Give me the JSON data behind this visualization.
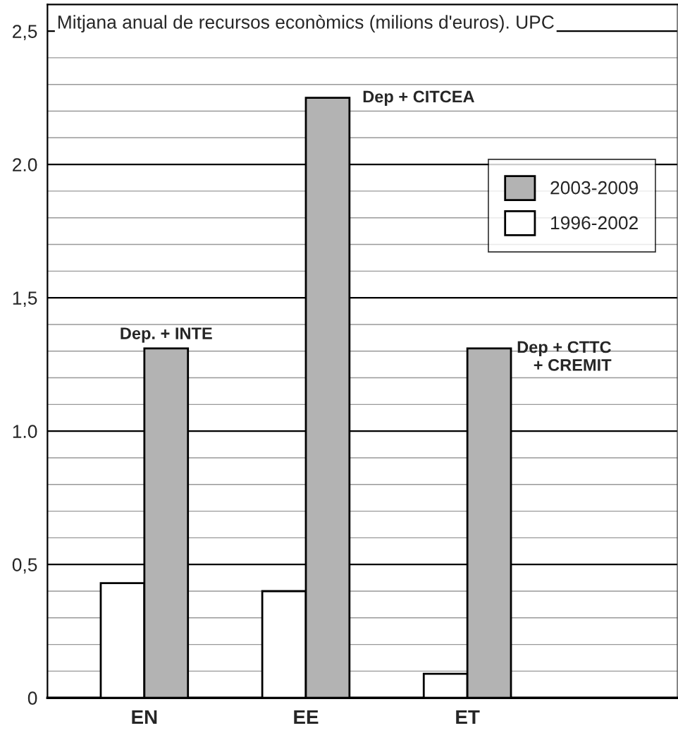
{
  "chart_data": {
    "type": "bar",
    "title": "Mitjana anual de recursos econòmics (milions d'euros). UPC",
    "categories": [
      "EN",
      "EE",
      "ET"
    ],
    "series": [
      {
        "name": "1996-2002",
        "color": "#ffffff",
        "values": [
          0.43,
          0.4,
          0.09
        ]
      },
      {
        "name": "2003-2009",
        "color": "#b3b3b3",
        "values": [
          1.31,
          2.25,
          1.31
        ]
      }
    ],
    "ylim": [
      0,
      2.6
    ],
    "yticks": [
      0,
      {
        "value": 0.1,
        "label": null
      },
      {
        "value": 0.2,
        "label": null
      },
      {
        "value": 0.3,
        "label": null
      },
      {
        "value": 0.4,
        "label": null
      },
      {
        "value": 0.5,
        "label": "0,5"
      },
      {
        "value": 0.6,
        "label": null
      },
      {
        "value": 0.7,
        "label": null
      },
      {
        "value": 0.8,
        "label": null
      },
      {
        "value": 0.9,
        "label": null
      },
      {
        "value": 1.0,
        "label": "1.0"
      },
      {
        "value": 1.1,
        "label": null
      },
      {
        "value": 1.2,
        "label": null
      },
      {
        "value": 1.3,
        "label": null
      },
      {
        "value": 1.4,
        "label": null
      },
      {
        "value": 1.5,
        "label": "1,5"
      },
      {
        "value": 1.6,
        "label": null
      },
      {
        "value": 1.7,
        "label": null
      },
      {
        "value": 1.8,
        "label": null
      },
      {
        "value": 1.9,
        "label": null
      },
      {
        "value": 2.0,
        "label": "2.0"
      },
      {
        "value": 2.1,
        "label": null
      },
      {
        "value": 2.2,
        "label": null
      },
      {
        "value": 2.3,
        "label": null
      },
      {
        "value": 2.4,
        "label": null
      },
      {
        "value": 2.5,
        "label": "2,5"
      }
    ],
    "grid": "y",
    "legend": "top right",
    "annotations": [
      {
        "text": "Dep. + INTE",
        "x": "EN",
        "y": 1.31
      },
      "Dep + CITCEA",
      "Dep + CTTC\n+ CREMIT"
    ]
  }
}
